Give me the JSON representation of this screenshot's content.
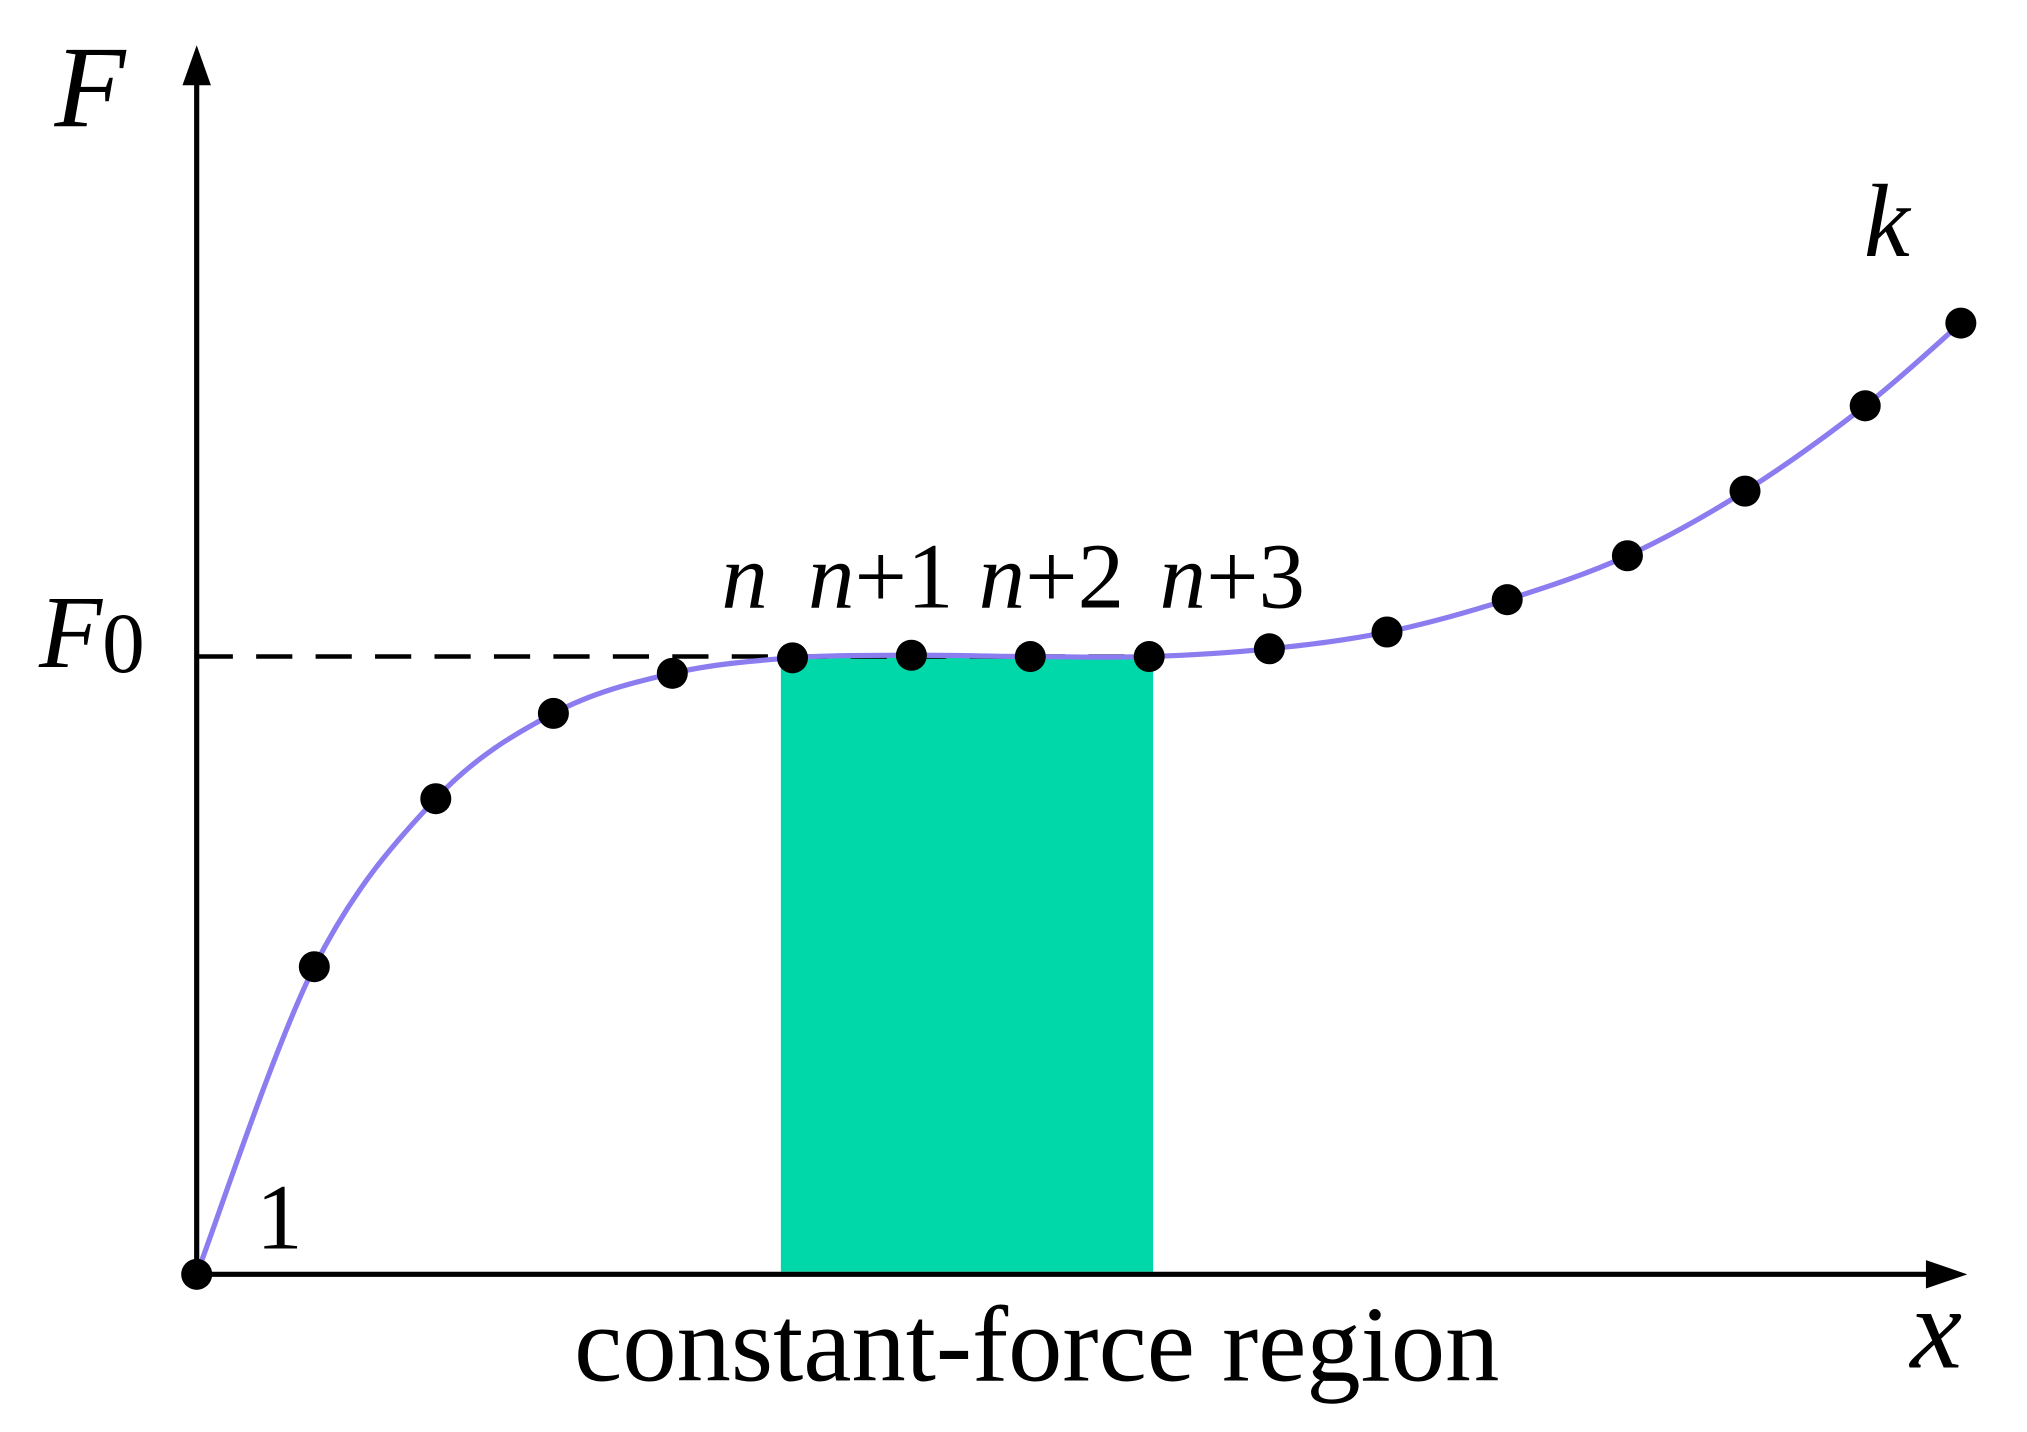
{
  "axes": {
    "y_label": "F",
    "x_label": "x"
  },
  "reference": {
    "symbol": "F",
    "subscript": "0"
  },
  "points": {
    "first": "1",
    "last": "k",
    "window": [
      {
        "var": "n",
        "offset": ""
      },
      {
        "var": "n",
        "offset": "+1"
      },
      {
        "var": "n",
        "offset": "+2"
      },
      {
        "var": "n",
        "offset": "+3"
      }
    ]
  },
  "caption": "constant-force region"
}
